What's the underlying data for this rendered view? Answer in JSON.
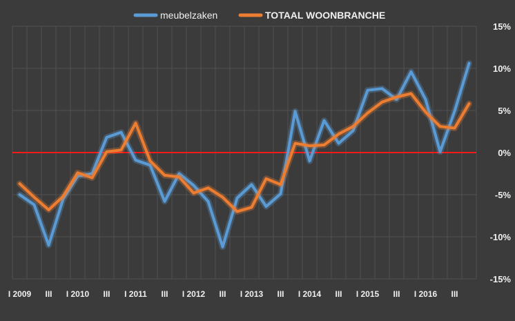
{
  "colors": {
    "background": "#3b3b3b",
    "grid": "#505050",
    "axis_text": "#f0f0f0",
    "zero_line": "#ff1a1a",
    "meubelzaken": "#5b9bd5",
    "totaal": "#ed7d31"
  },
  "chart_data": {
    "type": "line",
    "legend_position": "top",
    "grid": true,
    "ylim": [
      -15,
      15
    ],
    "y_ticks": [
      15,
      10,
      5,
      0,
      -5,
      -10,
      -15
    ],
    "y_tick_labels": [
      "15%",
      "10%",
      "5%",
      "0%",
      "-5%",
      "-10%",
      "-15%"
    ],
    "x_tick_labels": [
      "I 2009",
      "III",
      "I 2010",
      "III",
      "I 2011",
      "III",
      "I 2012",
      "III",
      "I 2013",
      "III",
      "I 2014",
      "III",
      "I 2015",
      "III",
      "I 2016",
      "III"
    ],
    "reference_line": 0,
    "series": [
      {
        "name": "meubelzaken",
        "values": [
          -5.0,
          -6.2,
          -11.0,
          -5.5,
          -2.8,
          -2.5,
          1.8,
          2.4,
          -0.9,
          -1.5,
          -5.8,
          -2.5,
          -3.9,
          -5.8,
          -11.2,
          -5.4,
          -3.8,
          -6.4,
          -4.9,
          4.9,
          -1.0,
          3.8,
          1.1,
          2.6,
          7.4,
          7.6,
          6.3,
          9.6,
          6.3,
          0.1,
          4.9,
          10.6
        ]
      },
      {
        "name": "TOTAAL WOONBRANCHE",
        "values": [
          -3.7,
          -5.3,
          -6.8,
          -5.2,
          -2.4,
          -3.0,
          0.1,
          0.3,
          3.5,
          -1.0,
          -2.7,
          -2.9,
          -4.8,
          -4.2,
          -5.3,
          -7.0,
          -6.5,
          -3.1,
          -3.8,
          1.1,
          0.8,
          0.9,
          2.2,
          3.1,
          4.7,
          6.0,
          6.6,
          7.0,
          4.8,
          3.1,
          2.9,
          5.8
        ]
      }
    ]
  }
}
